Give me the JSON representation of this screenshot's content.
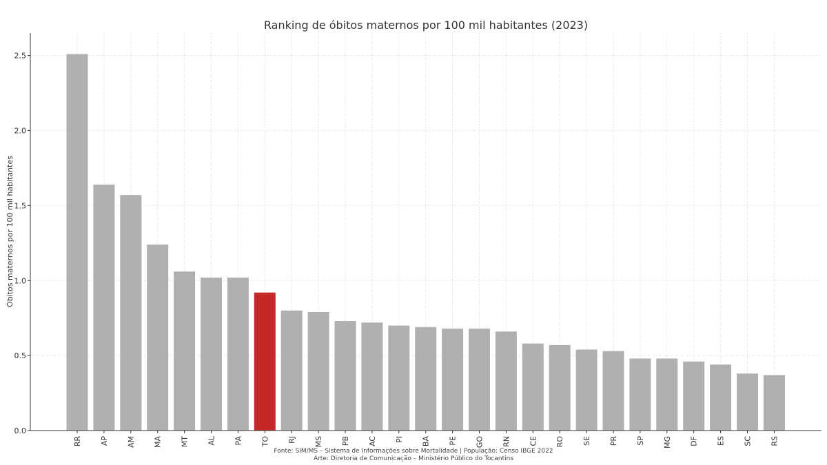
{
  "chart_data": {
    "type": "bar",
    "title": "Ranking de óbitos maternos por 100 mil habitantes (2023)",
    "xlabel": "",
    "ylabel": "Óbitos maternos por 100 mil habitantes",
    "categories": [
      "RR",
      "AP",
      "AM",
      "MA",
      "MT",
      "AL",
      "PA",
      "TO",
      "RJ",
      "MS",
      "PB",
      "AC",
      "PI",
      "BA",
      "PE",
      "GO",
      "RN",
      "CE",
      "RO",
      "SE",
      "PR",
      "SP",
      "MG",
      "DF",
      "ES",
      "SC",
      "RS"
    ],
    "values": [
      2.51,
      1.64,
      1.57,
      1.24,
      1.06,
      1.02,
      1.02,
      0.92,
      0.8,
      0.79,
      0.73,
      0.72,
      0.7,
      0.69,
      0.68,
      0.68,
      0.66,
      0.58,
      0.57,
      0.54,
      0.53,
      0.48,
      0.48,
      0.46,
      0.44,
      0.38,
      0.37
    ],
    "highlight": "TO",
    "ylim": [
      0,
      2.65
    ],
    "yticks": [
      "0.0",
      "0.5",
      "1.0",
      "1.5",
      "2.0",
      "2.5"
    ],
    "grid": true,
    "colors": {
      "bar": "#b0b0b0",
      "highlight": "#c62828",
      "grid": "#dddddd",
      "axis": "#333333"
    }
  },
  "footer": {
    "source": "Fonte: SIM/MS – Sistema de Informações sobre Mortalidade | População: Censo IBGE 2022",
    "art": "Arte: Diretoria de Comunicação – Ministério Público do Tocantins"
  }
}
